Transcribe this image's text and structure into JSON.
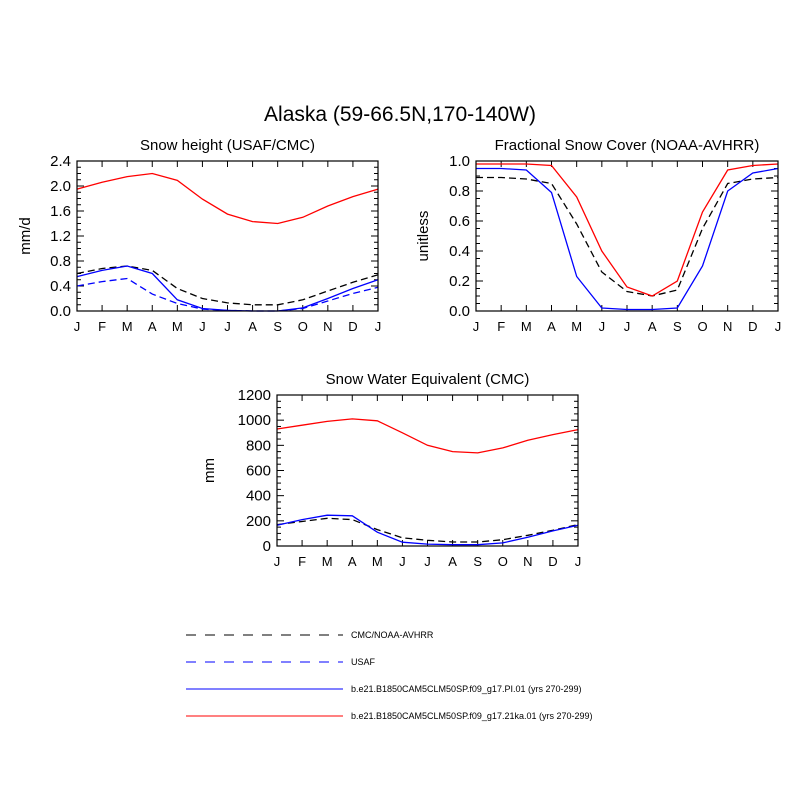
{
  "figure": {
    "title": "Alaska (59-66.5N,170-140W)"
  },
  "legend": {
    "entries": [
      {
        "label": "CMC/NOAA-AVHRR",
        "color": "#000000",
        "dash": "dashed"
      },
      {
        "label": "USAF",
        "color": "#0000ff",
        "dash": "dashed"
      },
      {
        "label": "b.e21.B1850CAM5CLM50SP.f09_g17.PI.01 (yrs 270-299)",
        "color": "#0000ff",
        "dash": "solid"
      },
      {
        "label": "b.e21.B1850CAM5CLM50SP.f09_g17.21ka.01 (yrs 270-299)",
        "color": "#ff0000",
        "dash": "solid"
      }
    ]
  },
  "chart_data": [
    {
      "type": "line",
      "title": "Snow height (USAF/CMC)",
      "xlabel": "",
      "ylabel": "mm/d",
      "categories": [
        "J",
        "F",
        "M",
        "A",
        "M",
        "J",
        "J",
        "A",
        "S",
        "O",
        "N",
        "D",
        "J"
      ],
      "ylim": [
        0,
        2.4
      ],
      "yticks": [
        0.0,
        0.4,
        0.8,
        1.2,
        1.6,
        2.0,
        2.4
      ],
      "ytick_labels": [
        "0.0",
        "0.4",
        "0.8",
        "1.2",
        "1.6",
        "2.0",
        "2.4"
      ],
      "grid": false,
      "series": [
        {
          "name": "CMC/NOAA-AVHRR",
          "color": "#000000",
          "dash": "dashed",
          "values": [
            0.6,
            0.68,
            0.72,
            0.65,
            0.36,
            0.2,
            0.13,
            0.1,
            0.1,
            0.18,
            0.32,
            0.46,
            0.58
          ]
        },
        {
          "name": "USAF",
          "color": "#0000ff",
          "dash": "dashed",
          "values": [
            0.4,
            0.47,
            0.52,
            0.27,
            0.12,
            0.03,
            0.01,
            0.0,
            0.0,
            0.04,
            0.16,
            0.28,
            0.38
          ]
        },
        {
          "name": "b.e21.B1850CAM5CLM50SP.f09_g17.PI.01 (yrs 270-299)",
          "color": "#0000ff",
          "dash": "solid",
          "values": [
            0.55,
            0.65,
            0.72,
            0.6,
            0.18,
            0.04,
            0.01,
            0.0,
            0.0,
            0.05,
            0.2,
            0.36,
            0.5
          ]
        },
        {
          "name": "b.e21.B1850CAM5CLM50SP.f09_g17.21ka.01 (yrs 270-299)",
          "color": "#ff0000",
          "dash": "solid",
          "values": [
            1.95,
            2.06,
            2.15,
            2.2,
            2.09,
            1.79,
            1.55,
            1.43,
            1.4,
            1.5,
            1.68,
            1.83,
            1.95
          ]
        }
      ]
    },
    {
      "type": "line",
      "title": "Fractional Snow Cover (NOAA-AVHRR)",
      "xlabel": "",
      "ylabel": "unitless",
      "categories": [
        "J",
        "F",
        "M",
        "A",
        "M",
        "J",
        "J",
        "A",
        "S",
        "O",
        "N",
        "D",
        "J"
      ],
      "ylim": [
        0,
        1.0
      ],
      "yticks": [
        0.0,
        0.2,
        0.4,
        0.6,
        0.8,
        1.0
      ],
      "ytick_labels": [
        "0.0",
        "0.2",
        "0.4",
        "0.6",
        "0.8",
        "1.0"
      ],
      "grid": false,
      "series": [
        {
          "name": "CMC/NOAA-AVHRR",
          "color": "#000000",
          "dash": "dashed",
          "values": [
            0.89,
            0.89,
            0.88,
            0.85,
            0.58,
            0.26,
            0.13,
            0.1,
            0.14,
            0.55,
            0.85,
            0.88,
            0.89
          ]
        },
        {
          "name": "b.e21.B1850CAM5CLM50SP.f09_g17.PI.01 (yrs 270-299)",
          "color": "#0000ff",
          "dash": "solid",
          "values": [
            0.95,
            0.95,
            0.94,
            0.79,
            0.23,
            0.02,
            0.01,
            0.01,
            0.02,
            0.3,
            0.8,
            0.92,
            0.95
          ]
        },
        {
          "name": "b.e21.B1850CAM5CLM50SP.f09_g17.21ka.01 (yrs 270-299)",
          "color": "#ff0000",
          "dash": "solid",
          "values": [
            0.98,
            0.98,
            0.98,
            0.97,
            0.76,
            0.4,
            0.16,
            0.1,
            0.2,
            0.66,
            0.94,
            0.97,
            0.98
          ]
        }
      ]
    },
    {
      "type": "line",
      "title": "Snow Water Equivalent (CMC)",
      "xlabel": "",
      "ylabel": "mm",
      "categories": [
        "J",
        "F",
        "M",
        "A",
        "M",
        "J",
        "J",
        "A",
        "S",
        "O",
        "N",
        "D",
        "J"
      ],
      "ylim": [
        0,
        1200
      ],
      "yticks": [
        0,
        200,
        400,
        600,
        800,
        1000,
        1200
      ],
      "ytick_labels": [
        "0",
        "200",
        "400",
        "600",
        "800",
        "1000",
        "1200"
      ],
      "grid": false,
      "series": [
        {
          "name": "CMC/NOAA-AVHRR",
          "color": "#000000",
          "dash": "dashed",
          "values": [
            170,
            195,
            220,
            210,
            130,
            65,
            45,
            32,
            32,
            50,
            85,
            125,
            170
          ]
        },
        {
          "name": "b.e21.B1850CAM5CLM50SP.f09_g17.PI.01 (yrs 270-299)",
          "color": "#0000ff",
          "dash": "solid",
          "values": [
            165,
            210,
            245,
            240,
            110,
            30,
            15,
            10,
            10,
            25,
            70,
            120,
            165
          ]
        },
        {
          "name": "b.e21.B1850CAM5CLM50SP.f09_g17.21ka.01 (yrs 270-299)",
          "color": "#ff0000",
          "dash": "solid",
          "values": [
            930,
            960,
            990,
            1010,
            995,
            900,
            800,
            750,
            740,
            780,
            840,
            885,
            925
          ]
        }
      ]
    }
  ]
}
